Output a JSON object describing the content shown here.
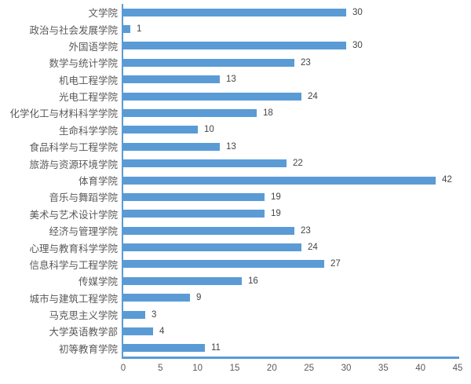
{
  "chart_data": {
    "type": "bar",
    "orientation": "horizontal",
    "title": "",
    "xlabel": "",
    "ylabel": "",
    "categories": [
      "文学院",
      "政治与社会发展学院",
      "外国语学院",
      "数学与统计学院",
      "机电工程学院",
      "光电工程学院",
      "化学化工与材料科学学院",
      "生命科学学院",
      "食品科学与工程学院",
      "旅游与资源环境学院",
      "体育学院",
      "音乐与舞蹈学院",
      "美术与艺术设计学院",
      "经济与管理学院",
      "心理与教育科学学院",
      "信息科学与工程学院",
      "传媒学院",
      "城市与建筑工程学院",
      "马克思主义学院",
      "大学英语教学部",
      "初等教育学院"
    ],
    "values": [
      30,
      1,
      30,
      23,
      13,
      24,
      18,
      10,
      13,
      22,
      42,
      19,
      19,
      23,
      24,
      27,
      16,
      9,
      3,
      4,
      11
    ],
    "data_labels_shown": true,
    "xlim": [
      0,
      45
    ],
    "x_ticks": [
      0,
      5,
      10,
      15,
      20,
      25,
      30,
      35,
      40,
      45
    ],
    "grid": false,
    "legend": "none",
    "colors": {
      "bar": "#5b9bd5",
      "axis_line": "#5b9bd5",
      "category_label": "#595959",
      "tick_label": "#595959",
      "data_label": "#444444",
      "background": "#ffffff"
    }
  }
}
